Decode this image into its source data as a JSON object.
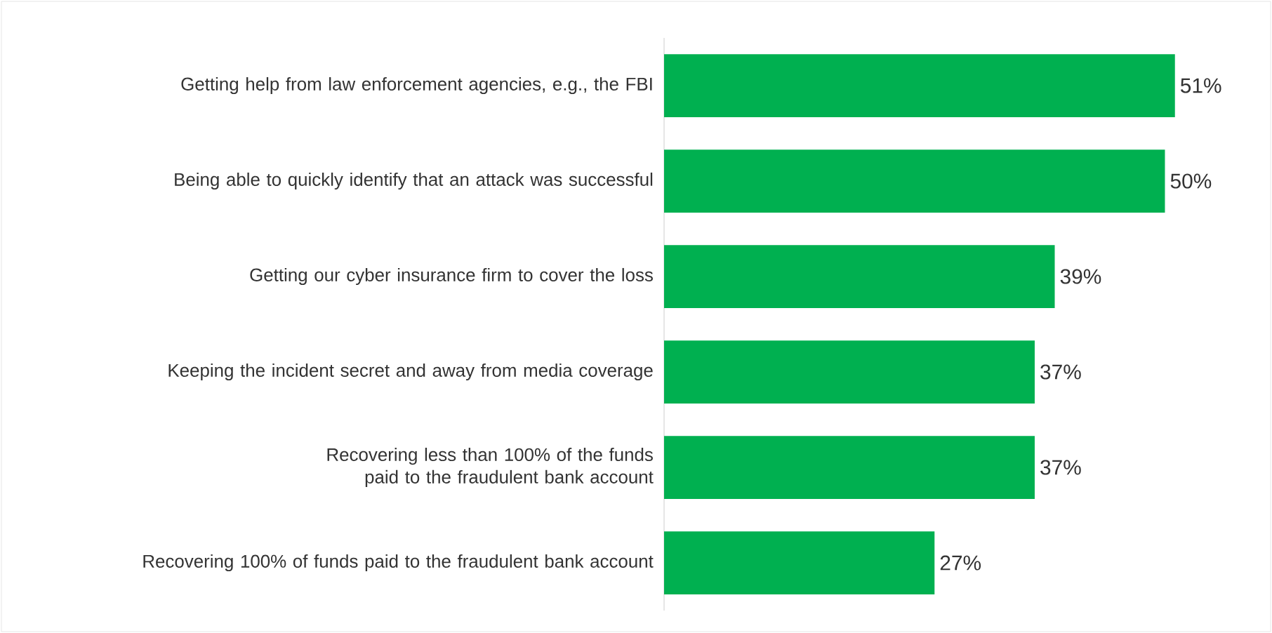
{
  "chart_data": {
    "type": "bar",
    "orientation": "horizontal",
    "categories": [
      "Getting help from law enforcement agencies, e.g., the FBI",
      "Being able to quickly identify that an attack was successful",
      "Getting our cyber insurance firm to cover the loss",
      "Keeping the incident secret and away from media coverage",
      "Recovering less than 100% of the funds paid to the fraudulent bank account",
      "Recovering 100% of funds paid to the fraudulent bank account"
    ],
    "values": [
      51,
      50,
      39,
      37,
      37,
      27
    ],
    "value_labels": [
      "51%",
      "50%",
      "39%",
      "37%",
      "37%",
      "27%"
    ],
    "color": "#00b050"
  }
}
